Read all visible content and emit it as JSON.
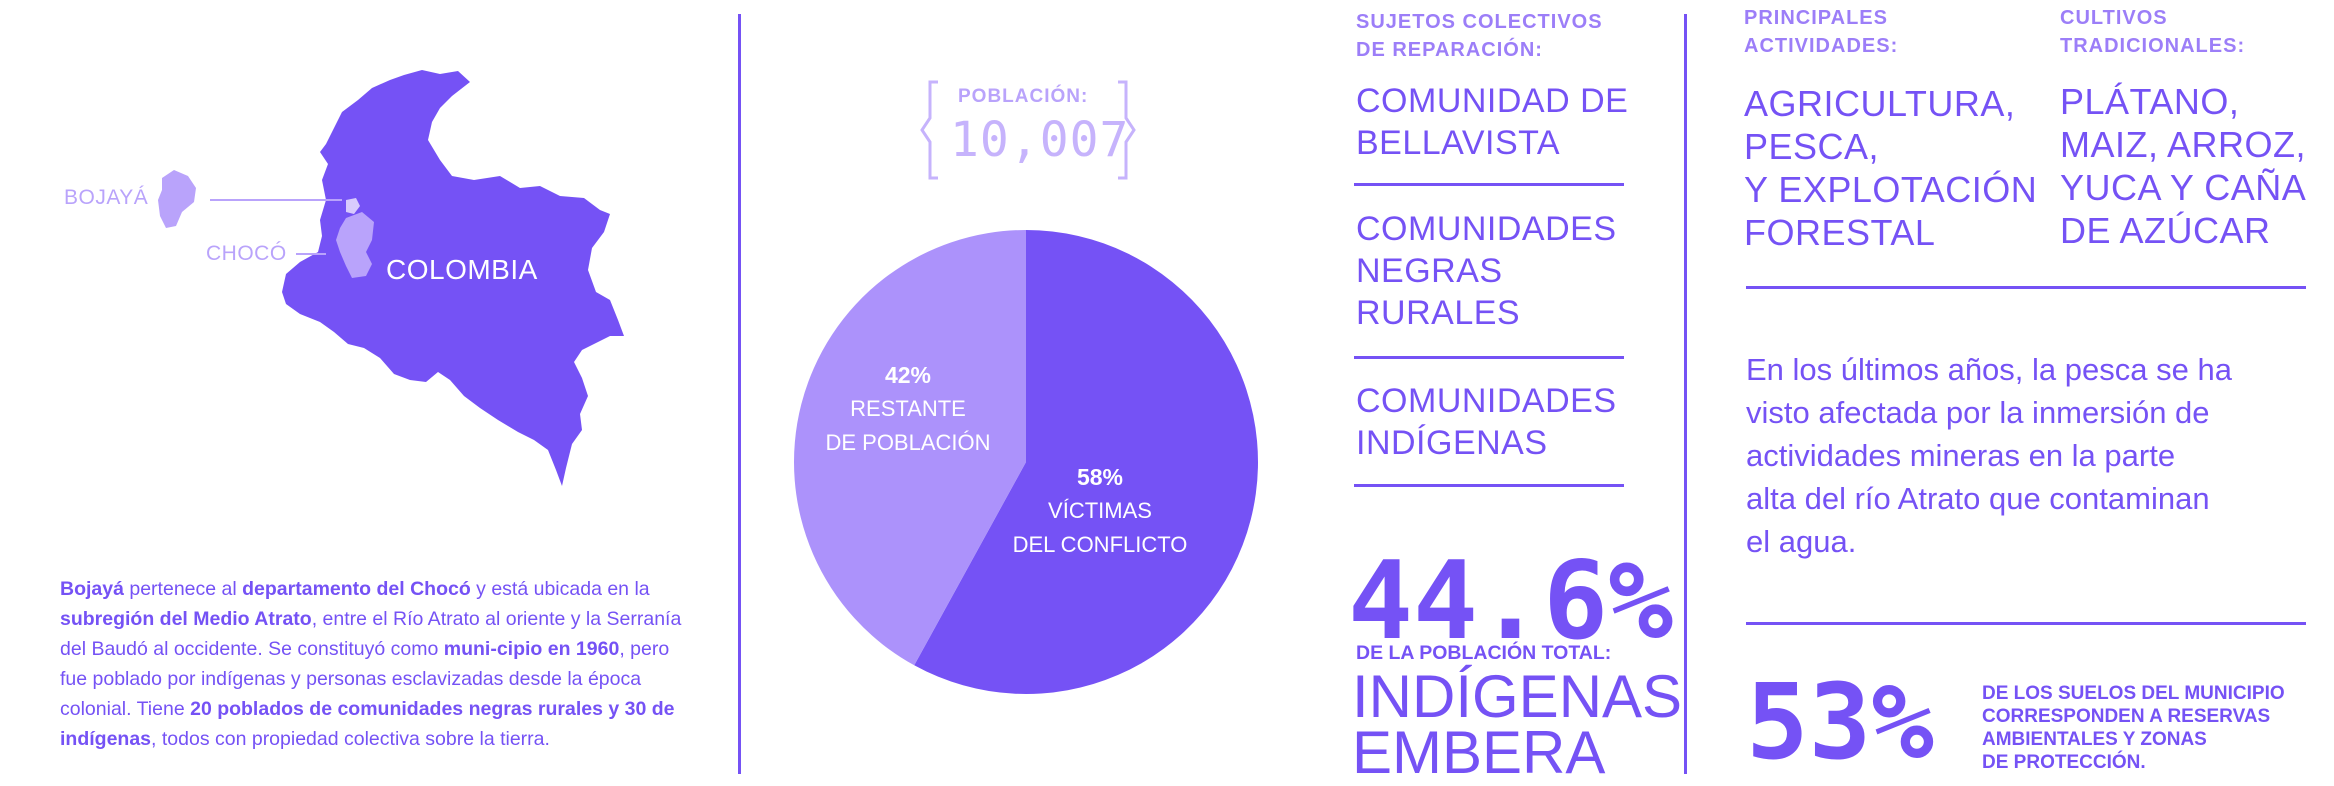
{
  "map": {
    "bojaya_label": "BOJAYÁ",
    "choco_label": "CHOCÓ",
    "country_label": "COLOMBIA"
  },
  "description": {
    "parts": [
      {
        "text": "Bojayá",
        "bold": true
      },
      {
        "text": " pertenece al ",
        "bold": false
      },
      {
        "text": "departamento del Chocó",
        "bold": true
      },
      {
        "text": " y está ubicada en la ",
        "bold": false
      },
      {
        "text": "subregión del Medio Atrato",
        "bold": true
      },
      {
        "text": ", entre el Río Atrato al oriente y la Serranía del Baudó al occidente. Se constituyó como ",
        "bold": false
      },
      {
        "text": "muni-cipio en 1960",
        "bold": true
      },
      {
        "text": ", pero fue poblado por indígenas y personas esclavizadas desde la época colonial. Tiene ",
        "bold": false
      },
      {
        "text": "20 poblados de comunidades negras rurales y 30 de indígenas",
        "bold": true
      },
      {
        "text": ", todos con propiedad colectiva sobre la tierra.",
        "bold": false
      }
    ]
  },
  "population": {
    "label": "POBLACIÓN:",
    "value": "10,007"
  },
  "chart_data": {
    "type": "pie",
    "slices": [
      {
        "pct_label": "58%",
        "label_line1": "VÍCTIMAS",
        "label_line2": "DEL CONFLICTO",
        "value": 58,
        "color": "#7552f5"
      },
      {
        "pct_label": "42%",
        "label_line1": "RESTANTE",
        "label_line2": "DE POBLACIÓN",
        "value": 42,
        "color": "#ac92fb"
      }
    ]
  },
  "sujetos": {
    "heading_line1": "SUJETOS COLECTIVOS",
    "heading_line2": "DE REPARACIÓN:",
    "items": [
      {
        "lines": [
          "COMUNIDAD DE",
          "BELLAVISTA"
        ]
      },
      {
        "lines": [
          "COMUNIDADES",
          "NEGRAS",
          "RURALES"
        ]
      },
      {
        "lines": [
          "COMUNIDADES",
          "INDÍGENAS"
        ]
      }
    ],
    "stat_value": "44.6%",
    "stat_caption": "DE LA POBLACIÓN TOTAL:",
    "stat_word1": "INDÍGENAS",
    "stat_word2": "EMBERA"
  },
  "actividades": {
    "heading_line1": "PRINCIPALES",
    "heading_line2": "ACTIVIDADES:",
    "lines": [
      "AGRICULTURA,",
      "PESCA,",
      "Y EXPLOTACIÓN",
      "FORESTAL"
    ]
  },
  "cultivos": {
    "heading_line1": "CULTIVOS",
    "heading_line2": "TRADICIONALES:",
    "lines": [
      "PLÁTANO,",
      "MAIZ, ARROZ,",
      "YUCA Y CAÑA",
      "DE AZÚCAR"
    ]
  },
  "paragraph": {
    "lines": [
      "En los últimos años, la pesca se ha",
      "visto afectada por la inmersión de",
      "actividades mineras en la parte",
      "alta del río Atrato que contaminan",
      "el agua."
    ]
  },
  "suelos": {
    "value": "53%",
    "caption_lines": [
      "DE LOS SUELOS DEL MUNICIPIO",
      "CORRESPONDEN A RESERVAS",
      "AMBIENTALES Y ZONAS",
      "DE PROTECCIÓN."
    ]
  }
}
